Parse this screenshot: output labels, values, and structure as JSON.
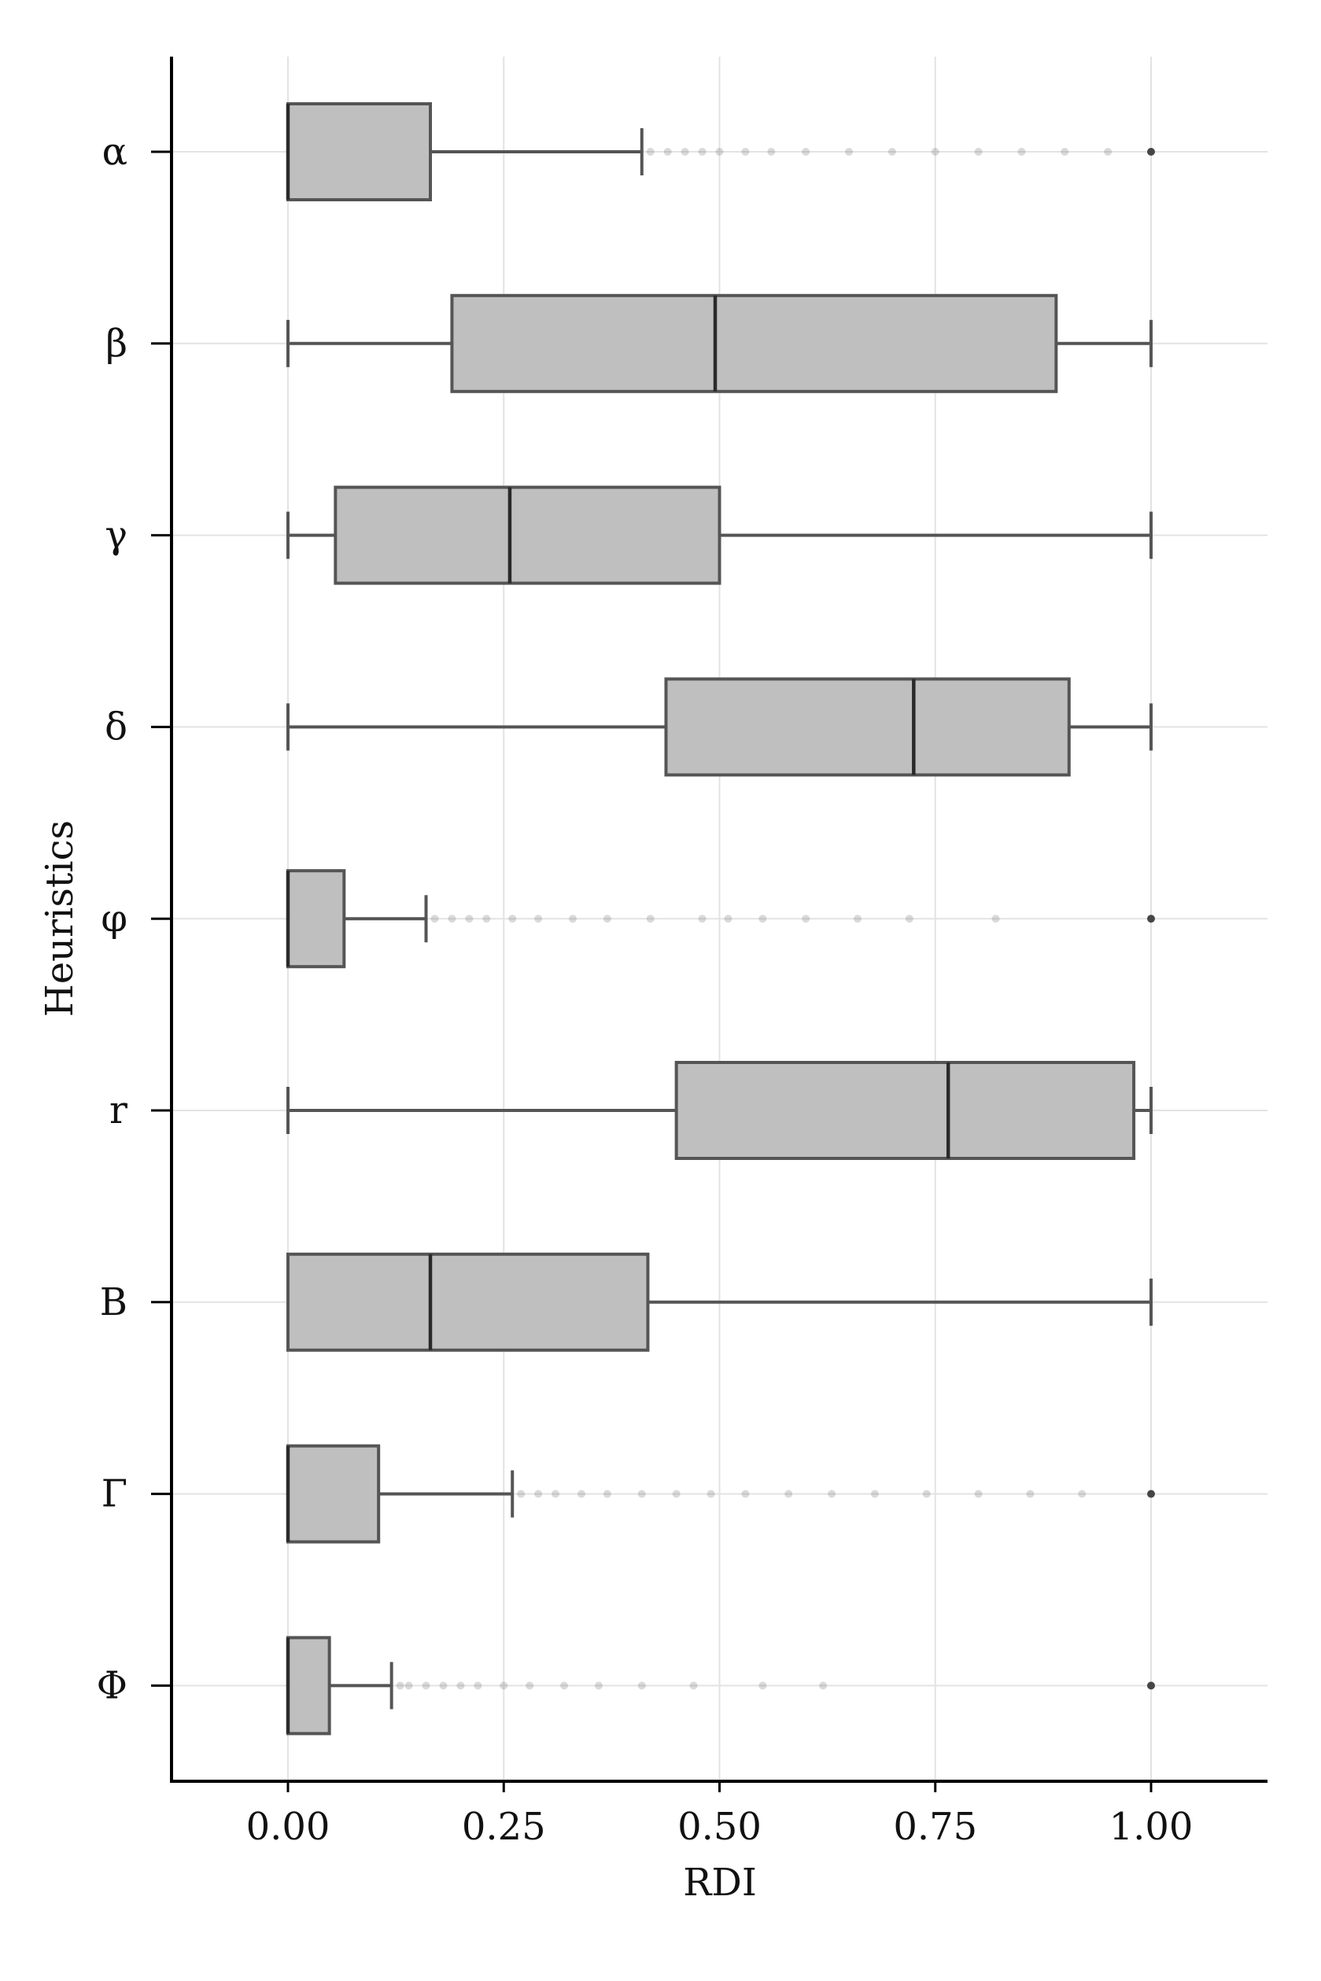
{
  "chart_data": {
    "type": "boxplot",
    "orientation": "horizontal",
    "title": "",
    "xlabel": "RDI",
    "ylabel": "Heuristics",
    "xlim": [
      -0.135,
      1.135
    ],
    "x_ticks": [
      0.0,
      0.25,
      0.5,
      0.75,
      1.0
    ],
    "x_tick_labels": [
      "0.00",
      "0.25",
      "0.50",
      "0.75",
      "1.00"
    ],
    "grid": true,
    "legend": "none",
    "colors": {
      "box_fill": "#bfbfbf",
      "box_edge": "#555555",
      "grid": "#e3e3e3",
      "axis": "#000000"
    },
    "categories": [
      "α",
      "β",
      "γ",
      "δ",
      "φ",
      "r",
      "B",
      "Γ",
      "Φ"
    ],
    "boxes": [
      {
        "label": "α",
        "whisker_low": 0.0,
        "q1": 0.0,
        "median": 0.0,
        "q3": 0.165,
        "whisker_high": 0.41,
        "outliers": [
          0.42,
          0.44,
          0.46,
          0.48,
          0.5,
          0.53,
          0.56,
          0.6,
          0.65,
          0.7,
          0.75,
          0.8,
          0.85,
          0.9,
          0.95,
          1.0
        ]
      },
      {
        "label": "β",
        "whisker_low": 0.0,
        "q1": 0.19,
        "median": 0.495,
        "q3": 0.89,
        "whisker_high": 1.0,
        "outliers": []
      },
      {
        "label": "γ",
        "whisker_low": 0.0,
        "q1": 0.055,
        "median": 0.257,
        "q3": 0.5,
        "whisker_high": 1.0,
        "outliers": []
      },
      {
        "label": "δ",
        "whisker_low": 0.0,
        "q1": 0.438,
        "median": 0.725,
        "q3": 0.905,
        "whisker_high": 1.0,
        "outliers": []
      },
      {
        "label": "φ",
        "whisker_low": 0.0,
        "q1": 0.0,
        "median": 0.0,
        "q3": 0.065,
        "whisker_high": 0.16,
        "outliers": [
          0.17,
          0.19,
          0.21,
          0.23,
          0.26,
          0.29,
          0.33,
          0.37,
          0.42,
          0.48,
          0.51,
          0.55,
          0.6,
          0.66,
          0.72,
          0.82,
          1.0
        ]
      },
      {
        "label": "r",
        "whisker_low": 0.0,
        "q1": 0.45,
        "median": 0.765,
        "q3": 0.98,
        "whisker_high": 1.0,
        "outliers": []
      },
      {
        "label": "B",
        "whisker_low": 0.0,
        "q1": 0.0,
        "median": 0.165,
        "q3": 0.417,
        "whisker_high": 1.0,
        "outliers": []
      },
      {
        "label": "Γ",
        "whisker_low": 0.0,
        "q1": 0.0,
        "median": 0.0,
        "q3": 0.105,
        "whisker_high": 0.26,
        "outliers": [
          0.27,
          0.29,
          0.31,
          0.34,
          0.37,
          0.41,
          0.45,
          0.49,
          0.53,
          0.58,
          0.63,
          0.68,
          0.74,
          0.8,
          0.86,
          0.92,
          1.0
        ]
      },
      {
        "label": "Φ",
        "whisker_low": 0.0,
        "q1": 0.0,
        "median": 0.0,
        "q3": 0.048,
        "whisker_high": 0.12,
        "outliers": [
          0.13,
          0.14,
          0.16,
          0.18,
          0.2,
          0.22,
          0.25,
          0.28,
          0.32,
          0.36,
          0.41,
          0.47,
          0.55,
          0.62,
          1.0
        ]
      }
    ]
  }
}
